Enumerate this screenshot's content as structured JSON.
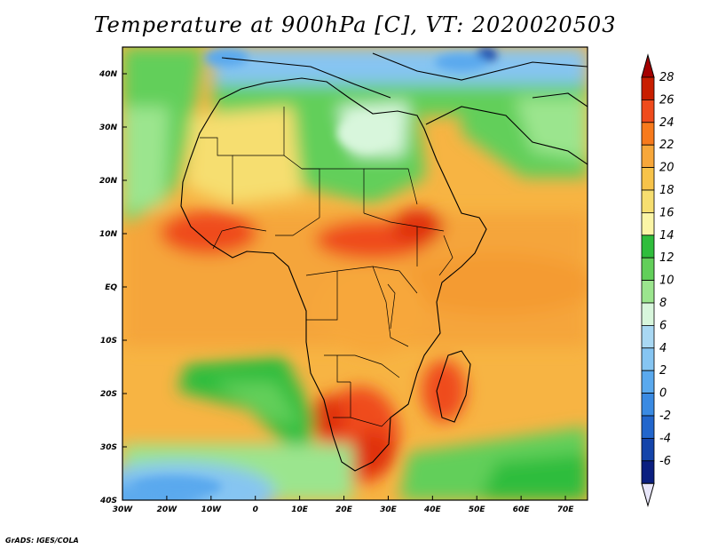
{
  "title": "Temperature at 900hPa [C], VT: 2020020503",
  "credit": "GrADS: IGES/COLA",
  "map": {
    "projection": "latlon",
    "lon_range": [
      -30,
      75
    ],
    "lat_range": [
      -40,
      45
    ],
    "x_ticks": [
      "30W",
      "20W",
      "10W",
      "0",
      "10E",
      "20E",
      "30E",
      "40E",
      "50E",
      "60E",
      "70E"
    ],
    "y_ticks": [
      "40N",
      "30N",
      "20N",
      "10N",
      "EQ",
      "10S",
      "20S",
      "30S",
      "40S"
    ],
    "features": [
      "coastlines",
      "country-borders"
    ]
  },
  "colorbar": {
    "levels": [
      "28",
      "26",
      "24",
      "22",
      "20",
      "18",
      "16",
      "14",
      "12",
      "10",
      "8",
      "6",
      "4",
      "2",
      "0",
      "-2",
      "-4",
      "-6"
    ],
    "colors": [
      "#c81e00",
      "#ef4b1c",
      "#f77a1c",
      "#f7a73a",
      "#f7c34a",
      "#f6de70",
      "#fbf5a6",
      "#2fbd3c",
      "#62cf5a",
      "#9be58e",
      "#d8f6dc",
      "#a9d8f3",
      "#86c5f2",
      "#5aa9ee",
      "#3a8ae2",
      "#2266cc",
      "#1444aa",
      "#0b1f80"
    ],
    "over_color": "#a40000",
    "under_color": "#e8e6fa"
  }
}
